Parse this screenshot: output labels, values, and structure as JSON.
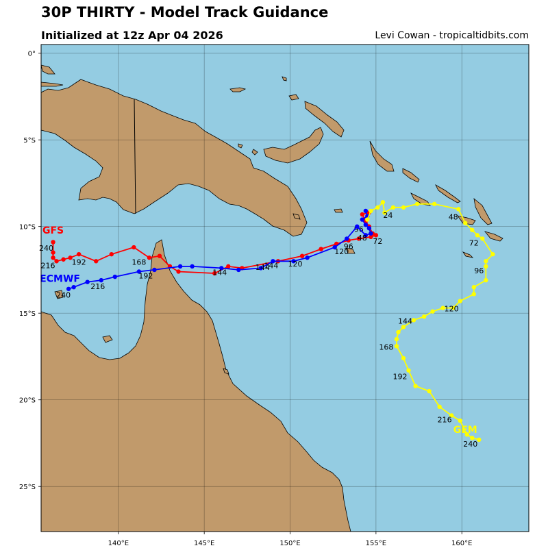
{
  "header": {
    "title": "30P THIRTY - Model Track Guidance",
    "subtitle": "Initialized at 12z Apr 04 2026",
    "credit": "Levi Cowan - tropicaltidbits.com"
  },
  "colors": {
    "ocean": "#94cce2",
    "land": "#c19a6b",
    "gfs": "#ff0000",
    "ecmwf": "#0000ff",
    "gem": "#ffff00"
  },
  "chart_data": {
    "type": "map-tracks",
    "lon_range": [
      135.5,
      163.9
    ],
    "lat_range": [
      -27.6,
      0.5
    ],
    "lon_ticks": [
      {
        "value": 140,
        "label": "140°E"
      },
      {
        "value": 145,
        "label": "145°E"
      },
      {
        "value": 150,
        "label": "150°E"
      },
      {
        "value": 155,
        "label": "155°E"
      },
      {
        "value": 160,
        "label": "160°E"
      }
    ],
    "lat_ticks": [
      {
        "value": 0,
        "label": "0°"
      },
      {
        "value": -5,
        "label": "5°S"
      },
      {
        "value": -10,
        "label": "10°S"
      },
      {
        "value": -15,
        "label": "15°S"
      },
      {
        "value": -20,
        "label": "20°S"
      },
      {
        "value": -25,
        "label": "25°S"
      }
    ],
    "grid": true,
    "tracks": [
      {
        "name": "GFS",
        "color": "#ff0000",
        "label_pos": {
          "lon": 136.2,
          "lat": -10.4
        },
        "points": [
          [
            154.6,
            -9.2
          ],
          [
            154.2,
            -9.3
          ],
          [
            154.4,
            -9.7
          ],
          [
            154.6,
            -10.0
          ],
          [
            154.8,
            -10.4
          ],
          [
            155.0,
            -10.5
          ],
          [
            154.7,
            -10.6
          ],
          [
            154.0,
            -10.7
          ],
          [
            153.4,
            -10.8
          ],
          [
            152.7,
            -11.0
          ],
          [
            151.8,
            -11.3
          ],
          [
            150.7,
            -11.7
          ],
          [
            149.3,
            -12.0
          ],
          [
            147.2,
            -12.4
          ],
          [
            146.4,
            -12.3
          ],
          [
            145.6,
            -12.7
          ],
          [
            143.5,
            -12.6
          ],
          [
            143.0,
            -12.3
          ],
          [
            142.4,
            -11.7
          ],
          [
            141.8,
            -11.8
          ],
          [
            140.9,
            -11.2
          ],
          [
            139.6,
            -11.6
          ],
          [
            138.7,
            -12.0
          ],
          [
            137.7,
            -11.6
          ],
          [
            137.2,
            -11.8
          ],
          [
            136.8,
            -11.9
          ],
          [
            136.4,
            -12.0
          ],
          [
            136.2,
            -11.8
          ],
          [
            136.2,
            -11.5
          ],
          [
            136.2,
            -10.9
          ]
        ],
        "labels": [
          {
            "text": "96",
            "lon": 154.0,
            "lat": -10.3
          },
          {
            "text": "72",
            "lon": 155.1,
            "lat": -11.0
          },
          {
            "text": "120",
            "lon": 153.0,
            "lat": -11.6
          },
          {
            "text": "144",
            "lon": 148.9,
            "lat": -12.4
          },
          {
            "text": "168",
            "lon": 141.2,
            "lat": -12.2
          },
          {
            "text": "192",
            "lon": 137.7,
            "lat": -12.2
          },
          {
            "text": "216",
            "lon": 135.9,
            "lat": -12.4
          },
          {
            "text": "240",
            "lon": 135.8,
            "lat": -11.4
          }
        ]
      },
      {
        "name": "ECMWF",
        "color": "#0000ff",
        "label_pos": {
          "lon": 136.6,
          "lat": -13.2
        },
        "points": [
          [
            154.4,
            -9.1
          ],
          [
            154.5,
            -9.4
          ],
          [
            154.2,
            -9.6
          ],
          [
            154.4,
            -9.9
          ],
          [
            154.6,
            -10.1
          ],
          [
            154.7,
            -10.4
          ],
          [
            154.4,
            -10.5
          ],
          [
            153.9,
            -10.0
          ],
          [
            153.3,
            -10.7
          ],
          [
            152.6,
            -11.2
          ],
          [
            151.0,
            -11.8
          ],
          [
            150.2,
            -12.0
          ],
          [
            149.0,
            -12.0
          ],
          [
            148.3,
            -12.4
          ],
          [
            147.0,
            -12.5
          ],
          [
            146.0,
            -12.4
          ],
          [
            144.3,
            -12.3
          ],
          [
            143.6,
            -12.3
          ],
          [
            142.1,
            -12.5
          ],
          [
            141.2,
            -12.6
          ],
          [
            139.8,
            -12.9
          ],
          [
            139.0,
            -13.1
          ],
          [
            138.2,
            -13.2
          ],
          [
            137.4,
            -13.5
          ],
          [
            137.1,
            -13.6
          ]
        ],
        "labels": [
          {
            "text": "48",
            "lon": 154.2,
            "lat": -10.8
          },
          {
            "text": "96",
            "lon": 153.4,
            "lat": -11.3
          },
          {
            "text": "120",
            "lon": 150.3,
            "lat": -12.3
          },
          {
            "text": "144",
            "lon": 145.9,
            "lat": -12.8
          },
          {
            "text": "144",
            "lon": 148.4,
            "lat": -12.5
          },
          {
            "text": "192",
            "lon": 141.6,
            "lat": -13.0
          },
          {
            "text": "216",
            "lon": 138.8,
            "lat": -13.6
          },
          {
            "text": "240",
            "lon": 136.8,
            "lat": -14.1
          }
        ]
      },
      {
        "name": "GEM",
        "color": "#ffff00",
        "label_pos": {
          "lon": 160.2,
          "lat": -21.9
        },
        "points": [
          [
            154.5,
            -9.6
          ],
          [
            154.7,
            -9.1
          ],
          [
            155.1,
            -8.9
          ],
          [
            155.4,
            -8.6
          ],
          [
            155.5,
            -9.2
          ],
          [
            156.0,
            -8.9
          ],
          [
            156.6,
            -8.9
          ],
          [
            157.4,
            -8.7
          ],
          [
            158.4,
            -8.7
          ],
          [
            159.8,
            -9.0
          ],
          [
            160.2,
            -9.8
          ],
          [
            160.6,
            -10.2
          ],
          [
            160.9,
            -10.5
          ],
          [
            161.2,
            -10.7
          ],
          [
            161.8,
            -11.6
          ],
          [
            161.4,
            -12.0
          ],
          [
            161.4,
            -12.3
          ],
          [
            161.4,
            -13.1
          ],
          [
            160.7,
            -13.5
          ],
          [
            160.7,
            -13.9
          ],
          [
            159.9,
            -14.3
          ],
          [
            159.5,
            -14.7
          ],
          [
            158.9,
            -14.7
          ],
          [
            158.3,
            -14.9
          ],
          [
            157.8,
            -15.2
          ],
          [
            157.2,
            -15.4
          ],
          [
            156.6,
            -15.8
          ],
          [
            156.3,
            -16.1
          ],
          [
            156.2,
            -16.5
          ],
          [
            156.2,
            -16.9
          ],
          [
            156.6,
            -17.6
          ],
          [
            156.9,
            -18.3
          ],
          [
            157.3,
            -19.2
          ],
          [
            158.1,
            -19.5
          ],
          [
            158.7,
            -20.4
          ],
          [
            159.4,
            -20.9
          ],
          [
            159.9,
            -21.2
          ],
          [
            160.3,
            -22.0
          ],
          [
            160.6,
            -22.2
          ],
          [
            161.0,
            -22.3
          ]
        ],
        "labels": [
          {
            "text": "24",
            "lon": 155.7,
            "lat": -9.5
          },
          {
            "text": "48",
            "lon": 159.5,
            "lat": -9.6
          },
          {
            "text": "72",
            "lon": 160.7,
            "lat": -11.1
          },
          {
            "text": "96",
            "lon": 161.0,
            "lat": -12.7
          },
          {
            "text": "120",
            "lon": 159.4,
            "lat": -14.9
          },
          {
            "text": "144",
            "lon": 156.7,
            "lat": -15.6
          },
          {
            "text": "168",
            "lon": 155.6,
            "lat": -17.1
          },
          {
            "text": "192",
            "lon": 156.4,
            "lat": -18.8
          },
          {
            "text": "216",
            "lon": 159.0,
            "lat": -21.3
          },
          {
            "text": "240",
            "lon": 160.5,
            "lat": -22.7
          }
        ]
      }
    ]
  }
}
